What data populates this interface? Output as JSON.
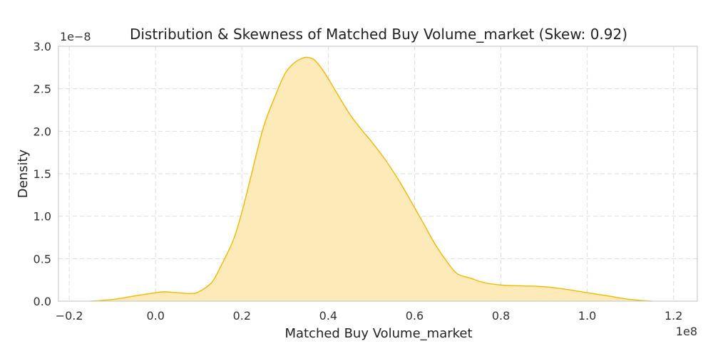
{
  "chart_data": {
    "type": "area",
    "title": "Distribution & Skewness of Matched Buy Volume_market (Skew: 0.92)",
    "xlabel": "Matched Buy Volume_market",
    "ylabel": "Density",
    "x_offset_label": "1e8",
    "y_offset_label": "1e−8",
    "xlim": [
      -0.225,
      1.255
    ],
    "ylim": [
      0.0,
      3.0
    ],
    "x_ticks": [
      -0.2,
      0.0,
      0.2,
      0.4,
      0.6,
      0.8,
      1.0,
      1.2
    ],
    "x_tick_labels": [
      "−0.2",
      "0.0",
      "0.2",
      "0.4",
      "0.6",
      "0.8",
      "1.0",
      "1.2"
    ],
    "y_ticks": [
      0.0,
      0.5,
      1.0,
      1.5,
      2.0,
      2.5,
      3.0
    ],
    "y_tick_labels": [
      "0.0",
      "0.5",
      "1.0",
      "1.5",
      "2.0",
      "2.5",
      "3.0"
    ],
    "grid": true,
    "series": [
      {
        "color": "#f5b800",
        "fill": "#fdeab9",
        "x": [
          -0.15,
          -0.1,
          -0.05,
          0.0,
          0.02,
          0.05,
          0.08,
          0.1,
          0.13,
          0.15,
          0.18,
          0.2,
          0.22,
          0.25,
          0.28,
          0.3,
          0.32,
          0.34,
          0.35,
          0.36,
          0.37,
          0.39,
          0.42,
          0.45,
          0.48,
          0.5,
          0.53,
          0.56,
          0.58,
          0.6,
          0.62,
          0.65,
          0.68,
          0.7,
          0.73,
          0.76,
          0.8,
          0.85,
          0.9,
          0.95,
          1.0,
          1.05,
          1.1,
          1.15
        ],
        "y": [
          0.0,
          0.02,
          0.06,
          0.1,
          0.11,
          0.1,
          0.09,
          0.11,
          0.22,
          0.4,
          0.72,
          1.05,
          1.45,
          2.05,
          2.45,
          2.68,
          2.8,
          2.86,
          2.87,
          2.86,
          2.83,
          2.7,
          2.45,
          2.2,
          2.0,
          1.88,
          1.68,
          1.45,
          1.28,
          1.1,
          0.92,
          0.65,
          0.43,
          0.32,
          0.27,
          0.22,
          0.19,
          0.18,
          0.17,
          0.14,
          0.1,
          0.06,
          0.02,
          0.0
        ]
      }
    ]
  }
}
